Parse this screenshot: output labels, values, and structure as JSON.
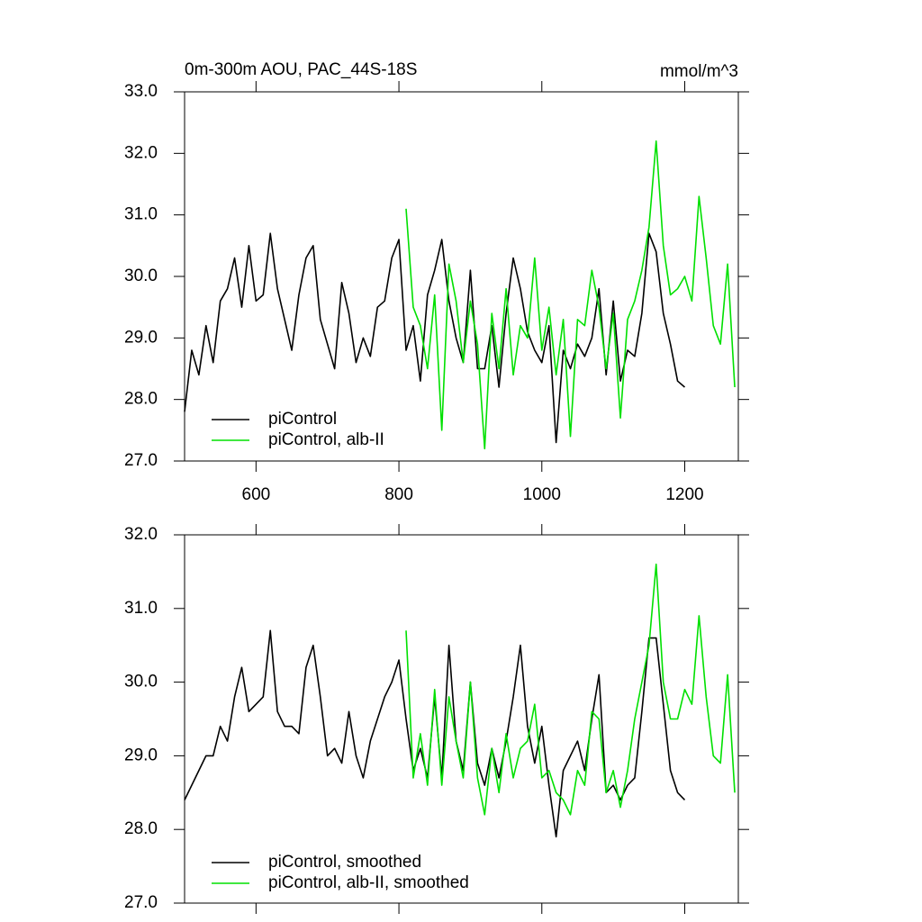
{
  "chart_data": [
    {
      "type": "line",
      "title": "0m-300m AOU, PAC_44S-18S",
      "units": "mmol/m^3",
      "xlim": [
        500,
        1275
      ],
      "xticks": [
        600,
        800,
        1000,
        1200
      ],
      "ylim": [
        27,
        33
      ],
      "yticks": [
        {
          "value": 27,
          "label": "27.0"
        },
        {
          "value": 28,
          "label": "28.0"
        },
        {
          "value": 29,
          "label": "29.0"
        },
        {
          "value": 30,
          "label": "30.0"
        },
        {
          "value": 31,
          "label": "31.0"
        },
        {
          "value": 32,
          "label": "32.0"
        },
        {
          "value": 33,
          "label": "33.0"
        }
      ],
      "series": [
        {
          "name": "piControl",
          "color": "#000000",
          "x": [
            500,
            510,
            520,
            530,
            540,
            550,
            560,
            570,
            580,
            590,
            600,
            610,
            620,
            630,
            640,
            650,
            660,
            670,
            680,
            690,
            700,
            710,
            720,
            730,
            740,
            750,
            760,
            770,
            780,
            790,
            800,
            810,
            820,
            830,
            840,
            850,
            860,
            870,
            880,
            890,
            900,
            910,
            920,
            930,
            940,
            950,
            960,
            970,
            980,
            990,
            1000,
            1010,
            1020,
            1030,
            1040,
            1050,
            1060,
            1070,
            1080,
            1090,
            1100,
            1110,
            1120,
            1130,
            1140,
            1150,
            1160,
            1170,
            1180,
            1190,
            1200
          ],
          "values": [
            27.8,
            28.8,
            28.4,
            29.2,
            28.6,
            29.6,
            29.8,
            30.3,
            29.5,
            30.5,
            29.6,
            29.7,
            30.7,
            29.8,
            29.3,
            28.8,
            29.7,
            30.3,
            30.5,
            29.3,
            28.9,
            28.5,
            29.9,
            29.4,
            28.6,
            29.0,
            28.7,
            29.5,
            29.6,
            30.3,
            30.6,
            28.8,
            29.2,
            28.3,
            29.7,
            30.1,
            30.6,
            29.6,
            29.0,
            28.6,
            30.1,
            28.5,
            28.5,
            29.2,
            28.2,
            29.4,
            30.3,
            29.8,
            29.1,
            28.8,
            28.6,
            29.2,
            27.3,
            28.8,
            28.5,
            28.9,
            28.7,
            29.0,
            29.8,
            28.4,
            29.6,
            28.3,
            28.8,
            28.7,
            29.4,
            30.7,
            30.4,
            29.4,
            28.9,
            28.3,
            28.2
          ]
        },
        {
          "name": "piControl, alb-II",
          "color": "#00e000",
          "x": [
            810,
            820,
            830,
            840,
            850,
            860,
            870,
            880,
            890,
            900,
            910,
            920,
            930,
            940,
            950,
            960,
            970,
            980,
            990,
            1000,
            1010,
            1020,
            1030,
            1040,
            1050,
            1060,
            1070,
            1080,
            1090,
            1100,
            1110,
            1120,
            1130,
            1140,
            1150,
            1160,
            1170,
            1180,
            1190,
            1200,
            1210,
            1220,
            1230,
            1240,
            1250,
            1260,
            1270
          ],
          "values": [
            31.1,
            29.5,
            29.2,
            28.5,
            29.7,
            27.5,
            30.2,
            29.6,
            28.6,
            29.6,
            28.9,
            27.2,
            29.4,
            28.5,
            29.8,
            28.4,
            29.2,
            29.0,
            30.3,
            28.8,
            29.5,
            28.4,
            29.3,
            27.4,
            29.3,
            29.2,
            30.1,
            29.5,
            28.5,
            29.4,
            27.7,
            29.3,
            29.6,
            30.1,
            30.8,
            32.2,
            30.5,
            29.7,
            29.8,
            30.0,
            29.6,
            31.3,
            30.3,
            29.2,
            28.9,
            30.2,
            28.2
          ]
        }
      ]
    },
    {
      "type": "line",
      "xlim": [
        500,
        1275
      ],
      "xticks": [
        600,
        800,
        1000,
        1200
      ],
      "ylim": [
        27,
        32
      ],
      "yticks": [
        {
          "value": 27,
          "label": "27.0"
        },
        {
          "value": 28,
          "label": "28.0"
        },
        {
          "value": 29,
          "label": "29.0"
        },
        {
          "value": 30,
          "label": "30.0"
        },
        {
          "value": 31,
          "label": "31.0"
        },
        {
          "value": 32,
          "label": "32.0"
        }
      ],
      "series": [
        {
          "name": "piControl, smoothed",
          "color": "#000000",
          "x": [
            500,
            510,
            520,
            530,
            540,
            550,
            560,
            570,
            580,
            590,
            600,
            610,
            620,
            630,
            640,
            650,
            660,
            670,
            680,
            690,
            700,
            710,
            720,
            730,
            740,
            750,
            760,
            770,
            780,
            790,
            800,
            810,
            820,
            830,
            840,
            850,
            860,
            870,
            880,
            890,
            900,
            910,
            920,
            930,
            940,
            950,
            960,
            970,
            980,
            990,
            1000,
            1010,
            1020,
            1030,
            1040,
            1050,
            1060,
            1070,
            1080,
            1090,
            1100,
            1110,
            1120,
            1130,
            1140,
            1150,
            1160,
            1170,
            1180,
            1190,
            1200
          ],
          "values": [
            28.4,
            28.6,
            28.8,
            29.0,
            29.0,
            29.4,
            29.2,
            29.8,
            30.2,
            29.6,
            29.7,
            29.8,
            30.7,
            29.6,
            29.4,
            29.4,
            29.3,
            30.2,
            30.5,
            29.8,
            29.0,
            29.1,
            28.9,
            29.6,
            29.0,
            28.7,
            29.2,
            29.5,
            29.8,
            30.0,
            30.3,
            29.5,
            28.8,
            29.1,
            28.7,
            29.8,
            28.7,
            30.5,
            29.2,
            28.8,
            30.0,
            28.9,
            28.6,
            29.1,
            28.7,
            29.2,
            29.8,
            30.5,
            29.4,
            28.9,
            29.4,
            28.6,
            27.9,
            28.8,
            29.0,
            29.2,
            28.8,
            29.5,
            30.1,
            28.5,
            28.6,
            28.4,
            28.6,
            28.7,
            29.6,
            30.6,
            30.6,
            29.7,
            28.8,
            28.5,
            28.4
          ]
        },
        {
          "name": "piControl, alb-II, smoothed",
          "color": "#00e000",
          "x": [
            810,
            820,
            830,
            840,
            850,
            860,
            870,
            880,
            890,
            900,
            910,
            920,
            930,
            940,
            950,
            960,
            970,
            980,
            990,
            1000,
            1010,
            1020,
            1030,
            1040,
            1050,
            1060,
            1070,
            1080,
            1090,
            1100,
            1110,
            1120,
            1130,
            1140,
            1150,
            1160,
            1170,
            1180,
            1190,
            1200,
            1210,
            1220,
            1230,
            1240,
            1250,
            1260,
            1270
          ],
          "values": [
            30.7,
            28.7,
            29.3,
            28.6,
            29.9,
            28.6,
            29.8,
            29.2,
            28.7,
            30.0,
            28.7,
            28.2,
            29.1,
            28.5,
            29.3,
            28.7,
            29.1,
            29.2,
            29.7,
            28.7,
            28.8,
            28.5,
            28.4,
            28.2,
            28.8,
            28.6,
            29.6,
            29.5,
            28.5,
            28.8,
            28.3,
            28.8,
            29.5,
            30.0,
            30.5,
            31.6,
            30.0,
            29.5,
            29.5,
            29.9,
            29.7,
            30.9,
            29.8,
            29.0,
            28.9,
            30.1,
            28.5
          ]
        }
      ]
    }
  ]
}
